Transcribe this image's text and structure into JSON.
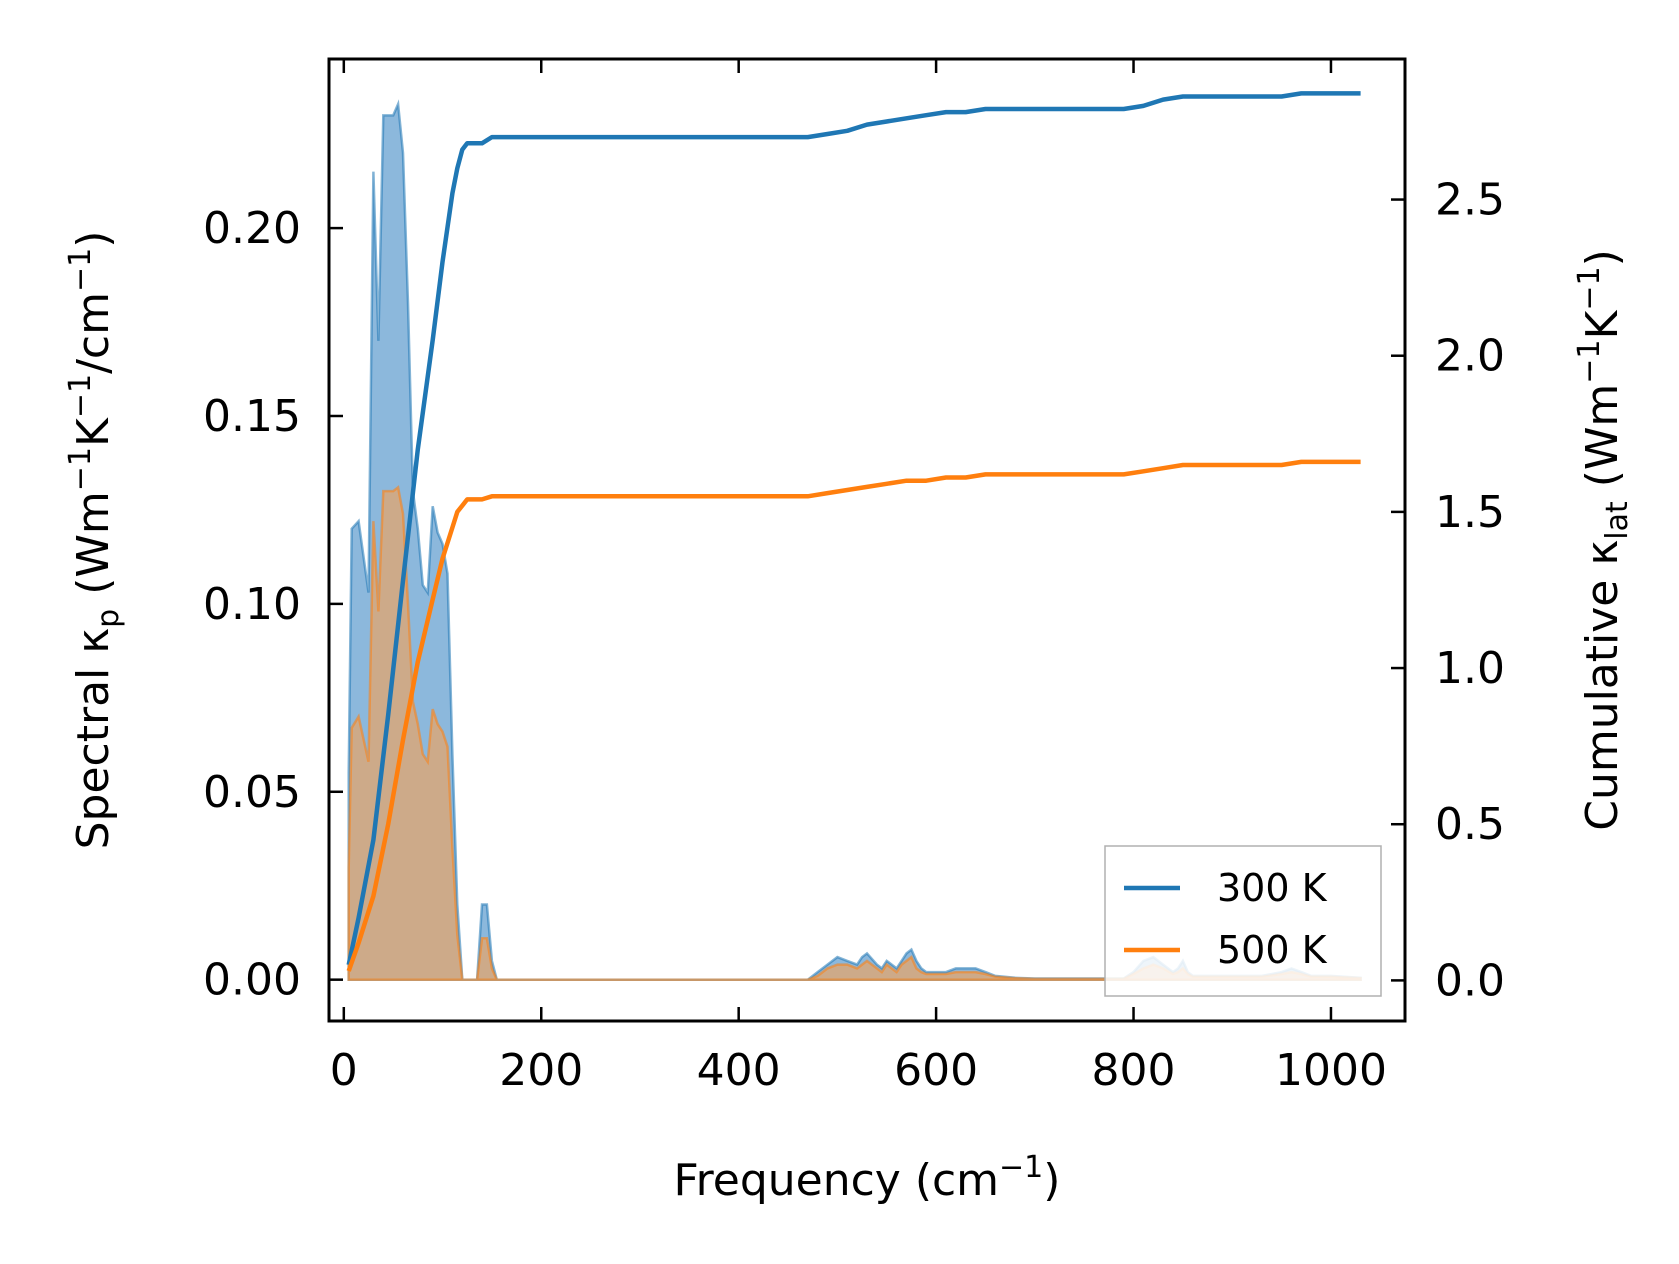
{
  "chart_data": {
    "type": "line",
    "xlabel": {
      "main": "Frequency (cm",
      "sup": "−1",
      "tail": ")"
    },
    "ylabel_left": {
      "p1": "Spectral κ",
      "sub": "p",
      "p2": " (Wm",
      "sup1": "−1",
      "p3": "K",
      "sup2": "−1",
      "p4": "/cm",
      "sup3": "−1",
      "p5": ")"
    },
    "ylabel_right": {
      "p1": "Cumulative κ",
      "sub": "lat",
      "p2": " (Wm",
      "sup1": "−1",
      "p3": "K",
      "sup2": "−1",
      "p4": ")"
    },
    "xlim": [
      -15,
      1075
    ],
    "ylim_left": [
      -0.011,
      0.245
    ],
    "ylim_right": [
      -0.13,
      2.95
    ],
    "x_ticks": [
      0,
      200,
      400,
      600,
      800,
      1000
    ],
    "y_left_ticks": [
      0.0,
      0.05,
      0.1,
      0.15,
      0.2
    ],
    "y_left_tick_labels": [
      "0.00",
      "0.05",
      "0.10",
      "0.15",
      "0.20"
    ],
    "y_right_ticks": [
      0.0,
      0.5,
      1.0,
      1.5,
      2.0,
      2.5
    ],
    "y_right_tick_labels": [
      "0.0",
      "0.5",
      "1.0",
      "1.5",
      "2.0",
      "2.5"
    ],
    "legend_position": "lower-right",
    "series": [
      {
        "name": "300 K",
        "color": "#1f77b4",
        "fill_color": "#6fa6d3",
        "spectral": {
          "x": [
            5,
            8,
            15,
            25,
            30,
            35,
            40,
            45,
            50,
            55,
            60,
            65,
            70,
            75,
            80,
            85,
            90,
            95,
            100,
            105,
            110,
            115,
            120,
            125,
            130,
            135,
            140,
            145,
            150,
            155,
            160,
            165,
            170,
            175,
            180,
            200,
            300,
            400,
            470,
            480,
            490,
            500,
            510,
            520,
            525,
            530,
            540,
            545,
            550,
            555,
            560,
            565,
            570,
            575,
            580,
            585,
            590,
            600,
            610,
            620,
            630,
            640,
            650,
            660,
            680,
            700,
            750,
            790,
            800,
            810,
            820,
            830,
            840,
            845,
            850,
            855,
            860,
            870,
            900,
            930,
            950,
            960,
            970,
            980,
            1000,
            1030
          ],
          "y": [
            0.055,
            0.12,
            0.122,
            0.103,
            0.215,
            0.17,
            0.23,
            0.23,
            0.23,
            0.233,
            0.22,
            0.18,
            0.13,
            0.12,
            0.105,
            0.103,
            0.126,
            0.119,
            0.116,
            0.108,
            0.06,
            0.02,
            0.0,
            0.0,
            0.0,
            0.0,
            0.02,
            0.02,
            0.005,
            0.0,
            0.0,
            0.0,
            0.0,
            0.0,
            0.0,
            0.0,
            0.0,
            0.0,
            0.0,
            0.002,
            0.004,
            0.006,
            0.005,
            0.004,
            0.006,
            0.007,
            0.004,
            0.003,
            0.005,
            0.004,
            0.003,
            0.005,
            0.007,
            0.008,
            0.005,
            0.003,
            0.002,
            0.002,
            0.002,
            0.003,
            0.003,
            0.003,
            0.002,
            0.001,
            0.0005,
            0.0003,
            0.0003,
            0.0003,
            0.002,
            0.005,
            0.006,
            0.004,
            0.002,
            0.003,
            0.005,
            0.002,
            0.001,
            0.001,
            0.001,
            0.001,
            0.002,
            0.003,
            0.002,
            0.001,
            0.001,
            0.0005
          ]
        },
        "cumulative": {
          "x": [
            5,
            15,
            30,
            45,
            60,
            75,
            90,
            100,
            110,
            115,
            120,
            125,
            130,
            140,
            150,
            160,
            180,
            200,
            300,
            400,
            470,
            490,
            510,
            530,
            550,
            570,
            590,
            610,
            630,
            650,
            700,
            750,
            790,
            810,
            830,
            850,
            870,
            900,
            950,
            970,
            1000,
            1030
          ],
          "y": [
            0.05,
            0.2,
            0.45,
            0.85,
            1.28,
            1.7,
            2.05,
            2.3,
            2.52,
            2.6,
            2.66,
            2.68,
            2.68,
            2.68,
            2.7,
            2.7,
            2.7,
            2.7,
            2.7,
            2.7,
            2.7,
            2.71,
            2.72,
            2.74,
            2.75,
            2.76,
            2.77,
            2.78,
            2.78,
            2.79,
            2.79,
            2.79,
            2.79,
            2.8,
            2.82,
            2.83,
            2.83,
            2.83,
            2.83,
            2.84,
            2.84,
            2.84
          ]
        }
      },
      {
        "name": "500 K",
        "color": "#ff7f0e",
        "fill_color": "#d8a77a",
        "spectral": {
          "x": [
            5,
            8,
            15,
            25,
            30,
            35,
            40,
            45,
            50,
            55,
            60,
            65,
            70,
            75,
            80,
            85,
            90,
            95,
            100,
            105,
            110,
            115,
            120,
            125,
            130,
            135,
            140,
            145,
            150,
            155,
            160,
            165,
            170,
            175,
            180,
            200,
            300,
            400,
            470,
            480,
            490,
            500,
            510,
            520,
            525,
            530,
            540,
            545,
            550,
            555,
            560,
            565,
            570,
            575,
            580,
            585,
            590,
            600,
            610,
            620,
            630,
            640,
            650,
            660,
            680,
            700,
            750,
            790,
            800,
            810,
            820,
            830,
            840,
            845,
            850,
            855,
            860,
            870,
            900,
            930,
            950,
            960,
            970,
            980,
            1000,
            1030
          ],
          "y": [
            0.03,
            0.067,
            0.07,
            0.058,
            0.122,
            0.098,
            0.13,
            0.13,
            0.13,
            0.131,
            0.124,
            0.1,
            0.074,
            0.068,
            0.06,
            0.058,
            0.072,
            0.068,
            0.066,
            0.062,
            0.035,
            0.012,
            0.0,
            0.0,
            0.0,
            0.0,
            0.011,
            0.011,
            0.003,
            0.0,
            0.0,
            0.0,
            0.0,
            0.0,
            0.0,
            0.0,
            0.0,
            0.0,
            0.0,
            0.001,
            0.003,
            0.004,
            0.004,
            0.003,
            0.004,
            0.005,
            0.003,
            0.002,
            0.004,
            0.003,
            0.002,
            0.004,
            0.005,
            0.006,
            0.003,
            0.002,
            0.0015,
            0.0015,
            0.0015,
            0.002,
            0.002,
            0.002,
            0.0015,
            0.0008,
            0.0004,
            0.0002,
            0.0002,
            0.0002,
            0.0015,
            0.003,
            0.004,
            0.003,
            0.0015,
            0.002,
            0.003,
            0.0015,
            0.0008,
            0.0008,
            0.0008,
            0.0008,
            0.0015,
            0.002,
            0.0015,
            0.0008,
            0.0008,
            0.0004
          ]
        },
        "cumulative": {
          "x": [
            5,
            15,
            30,
            45,
            60,
            75,
            90,
            100,
            110,
            115,
            120,
            125,
            130,
            140,
            150,
            160,
            180,
            200,
            300,
            400,
            470,
            490,
            510,
            530,
            550,
            570,
            590,
            610,
            630,
            650,
            700,
            750,
            790,
            810,
            830,
            850,
            870,
            900,
            950,
            970,
            1000,
            1030
          ],
          "y": [
            0.03,
            0.12,
            0.27,
            0.5,
            0.77,
            1.02,
            1.22,
            1.35,
            1.45,
            1.5,
            1.52,
            1.54,
            1.54,
            1.54,
            1.55,
            1.55,
            1.55,
            1.55,
            1.55,
            1.55,
            1.55,
            1.56,
            1.57,
            1.58,
            1.59,
            1.6,
            1.6,
            1.61,
            1.61,
            1.62,
            1.62,
            1.62,
            1.62,
            1.63,
            1.64,
            1.65,
            1.65,
            1.65,
            1.65,
            1.66,
            1.66,
            1.66
          ]
        }
      }
    ]
  }
}
